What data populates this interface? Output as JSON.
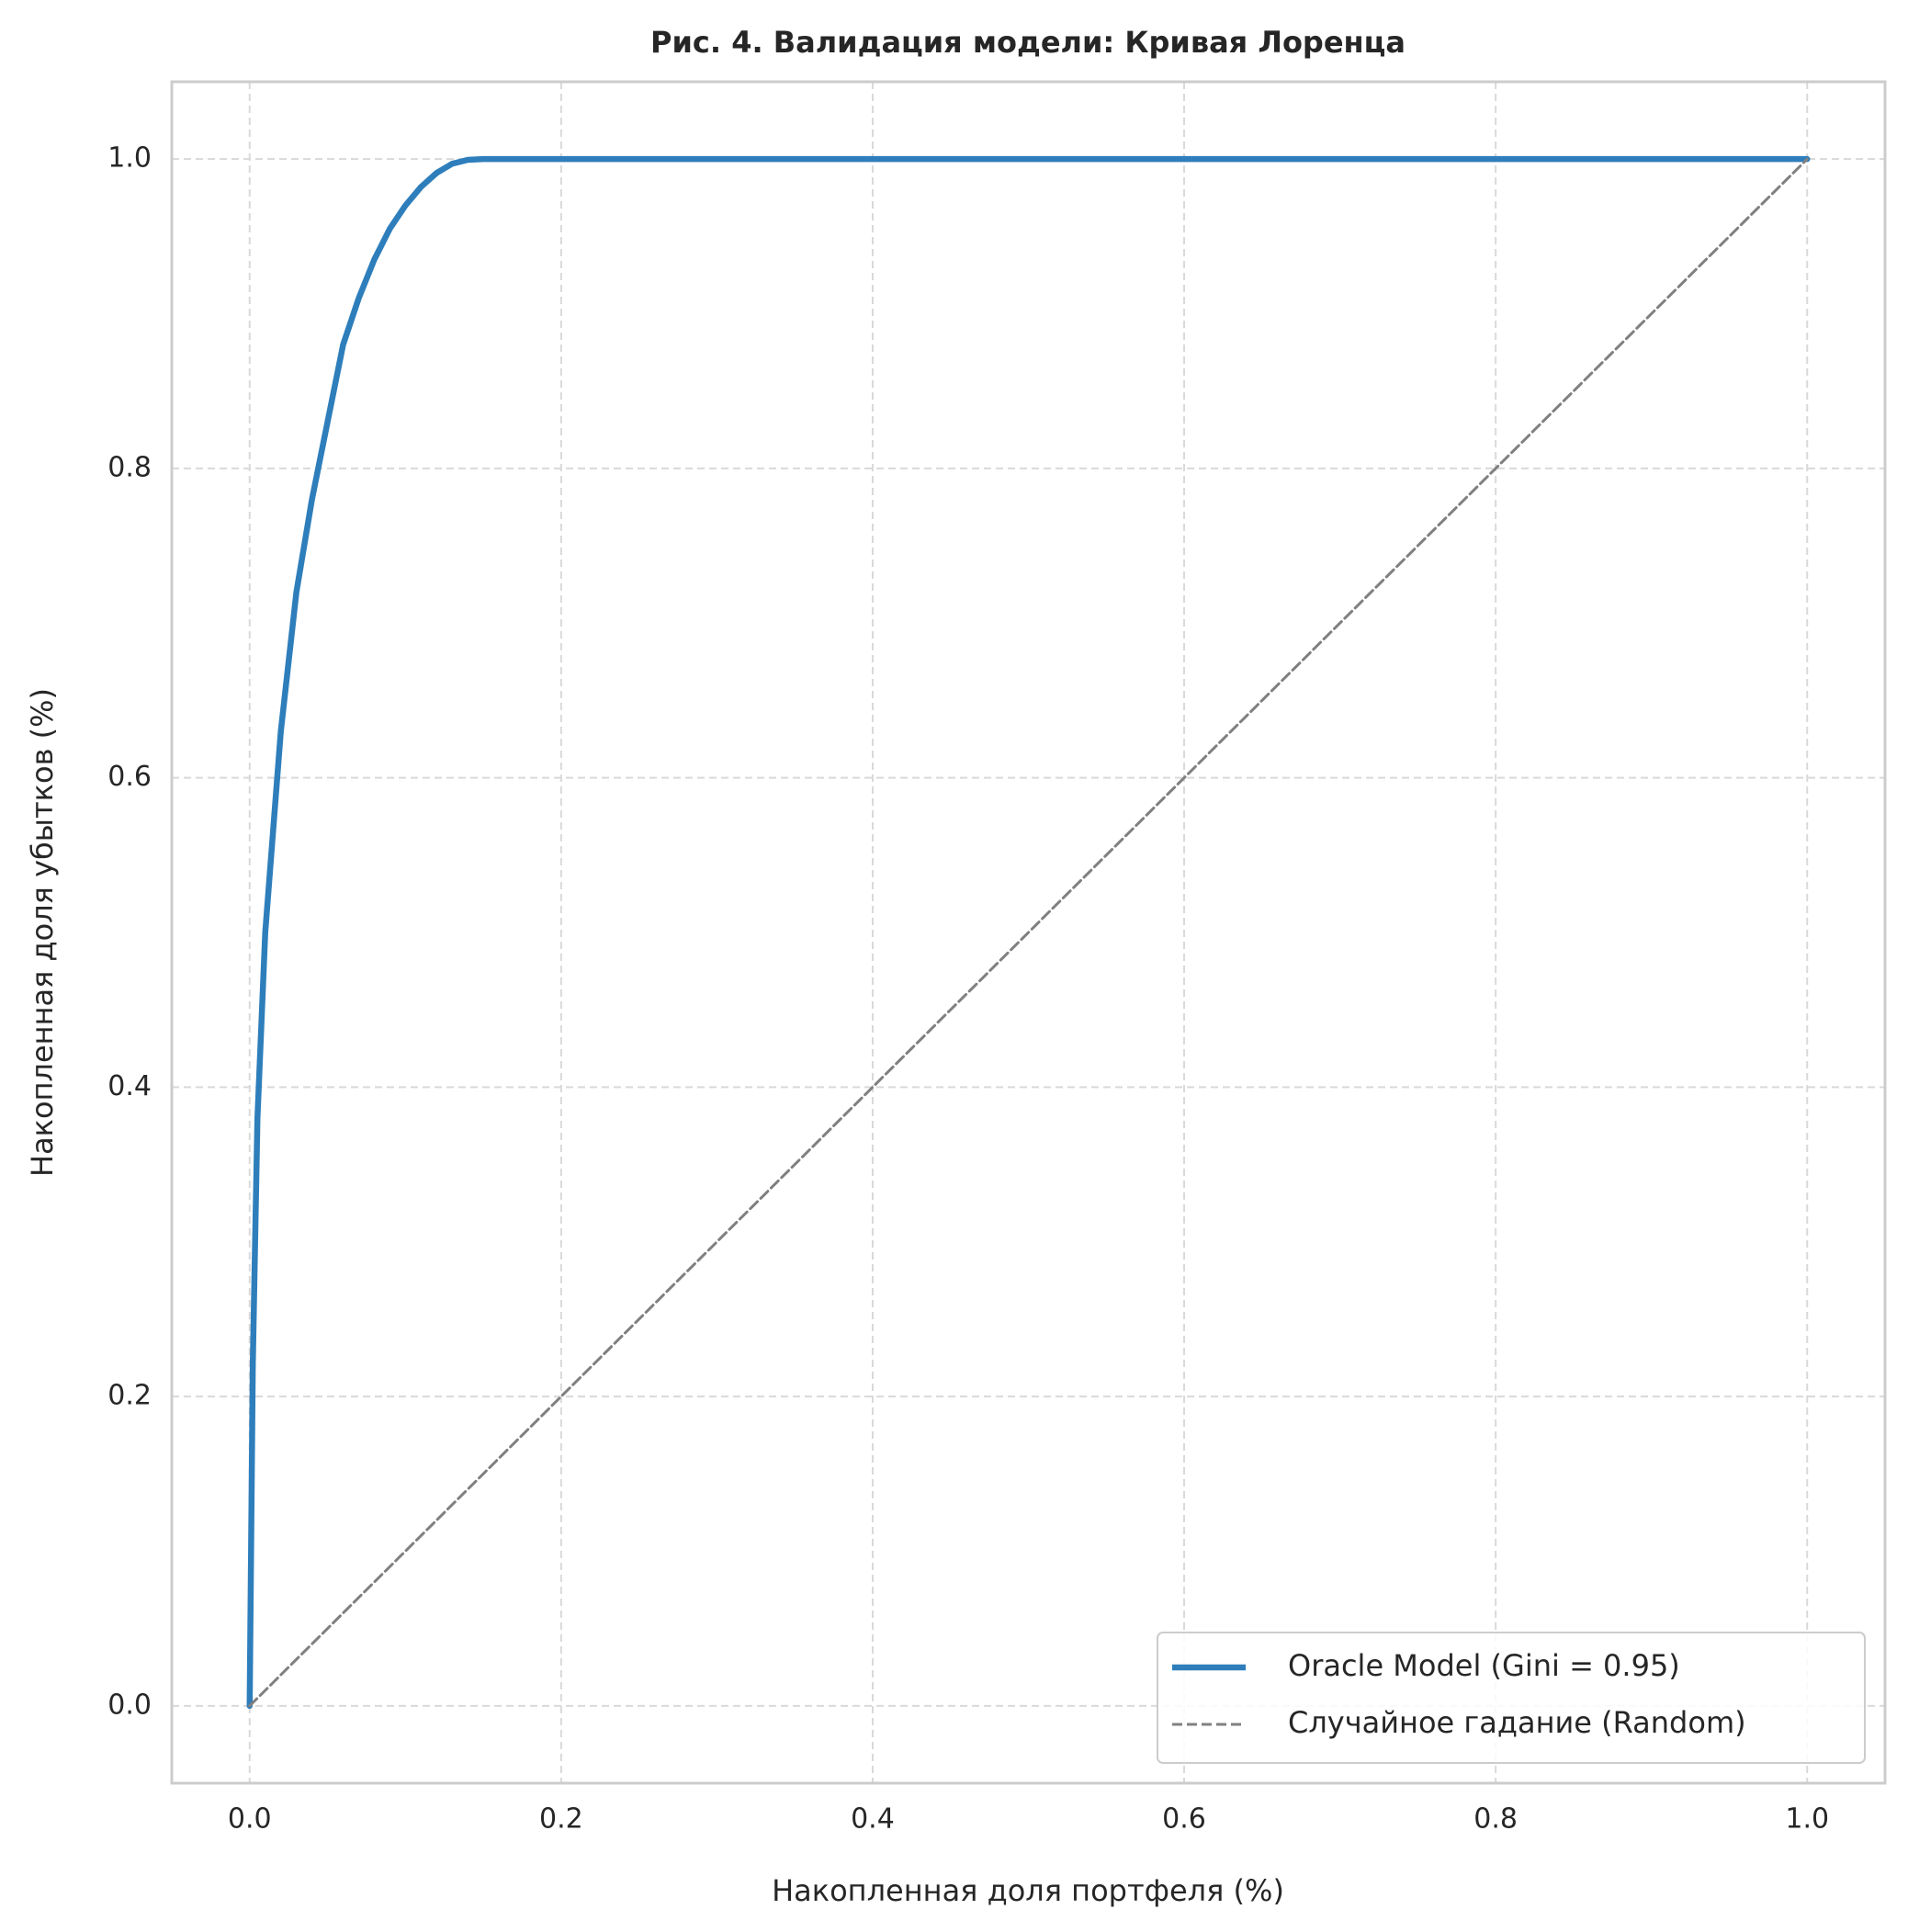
{
  "chart_data": {
    "type": "line",
    "title": "Рис. 4. Валидация модели: Кривая Лоренца",
    "xlabel": "Накопленная доля портфеля (%)",
    "ylabel": "Накопленная доля убытков (%)",
    "xlim": [
      -0.05,
      1.05
    ],
    "ylim": [
      -0.05,
      1.05
    ],
    "xticks": [
      {
        "value": 0,
        "label": "0.0"
      },
      0.2,
      0.4,
      0.6,
      0.8,
      {
        "value": 1,
        "label": "1.0"
      }
    ],
    "yticks": [
      {
        "value": 0,
        "label": "0.0"
      },
      0.2,
      0.4,
      0.6,
      0.8,
      {
        "value": 1,
        "label": "1.0"
      }
    ],
    "grid": true,
    "legend": "lower right",
    "series": [
      {
        "name": "Oracle Model (Gini = 0.95)",
        "color": "#2e7ebb",
        "style": "solid",
        "x": [
          0,
          0.002,
          0.005,
          0.01,
          0.02,
          0.03,
          0.04,
          0.05,
          0.06,
          0.07,
          0.08,
          0.09,
          0.1,
          0.11,
          0.12,
          0.13,
          0.14,
          0.15,
          1
        ],
        "values": [
          0,
          0.22,
          0.38,
          0.5,
          0.63,
          0.72,
          0.78,
          0.83,
          0.88,
          0.91,
          0.935,
          0.955,
          0.97,
          0.982,
          0.991,
          0.997,
          0.9995,
          1,
          1
        ]
      },
      {
        "name": "Случайное гадание (Random)",
        "color": "#808080",
        "style": "dashed",
        "x": [
          0,
          1
        ],
        "values": [
          0,
          1
        ]
      }
    ]
  }
}
